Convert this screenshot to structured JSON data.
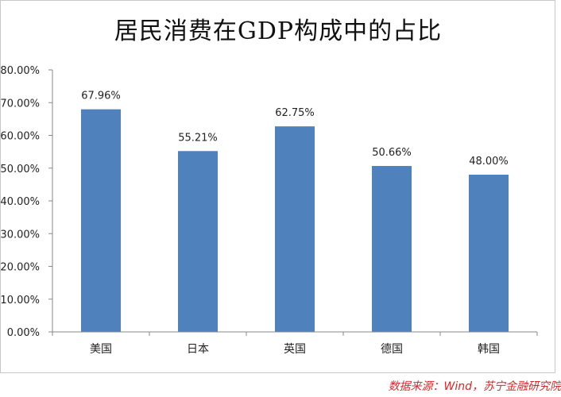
{
  "chart_data": {
    "type": "bar",
    "title": "居民消费在GDP构成中的占比",
    "categories": [
      "美国",
      "日本",
      "英国",
      "德国",
      "韩国"
    ],
    "values": [
      67.96,
      55.21,
      62.75,
      50.66,
      48.0
    ],
    "value_labels": [
      "67.96%",
      "55.21%",
      "62.75%",
      "50.66%",
      "48.00%"
    ],
    "y_ticks": [
      0,
      10,
      20,
      30,
      40,
      50,
      60,
      70,
      80
    ],
    "y_tick_labels": [
      "0.00%",
      "10.00%",
      "20.00%",
      "30.00%",
      "40.00%",
      "50.00%",
      "60.00%",
      "70.00%",
      "80.00%"
    ],
    "ylim": [
      0,
      80
    ],
    "xlabel": "",
    "ylabel": "",
    "grid": false,
    "bar_color": "#4f81bd"
  },
  "source": "数据来源：Wind，苏宁金融研究院"
}
